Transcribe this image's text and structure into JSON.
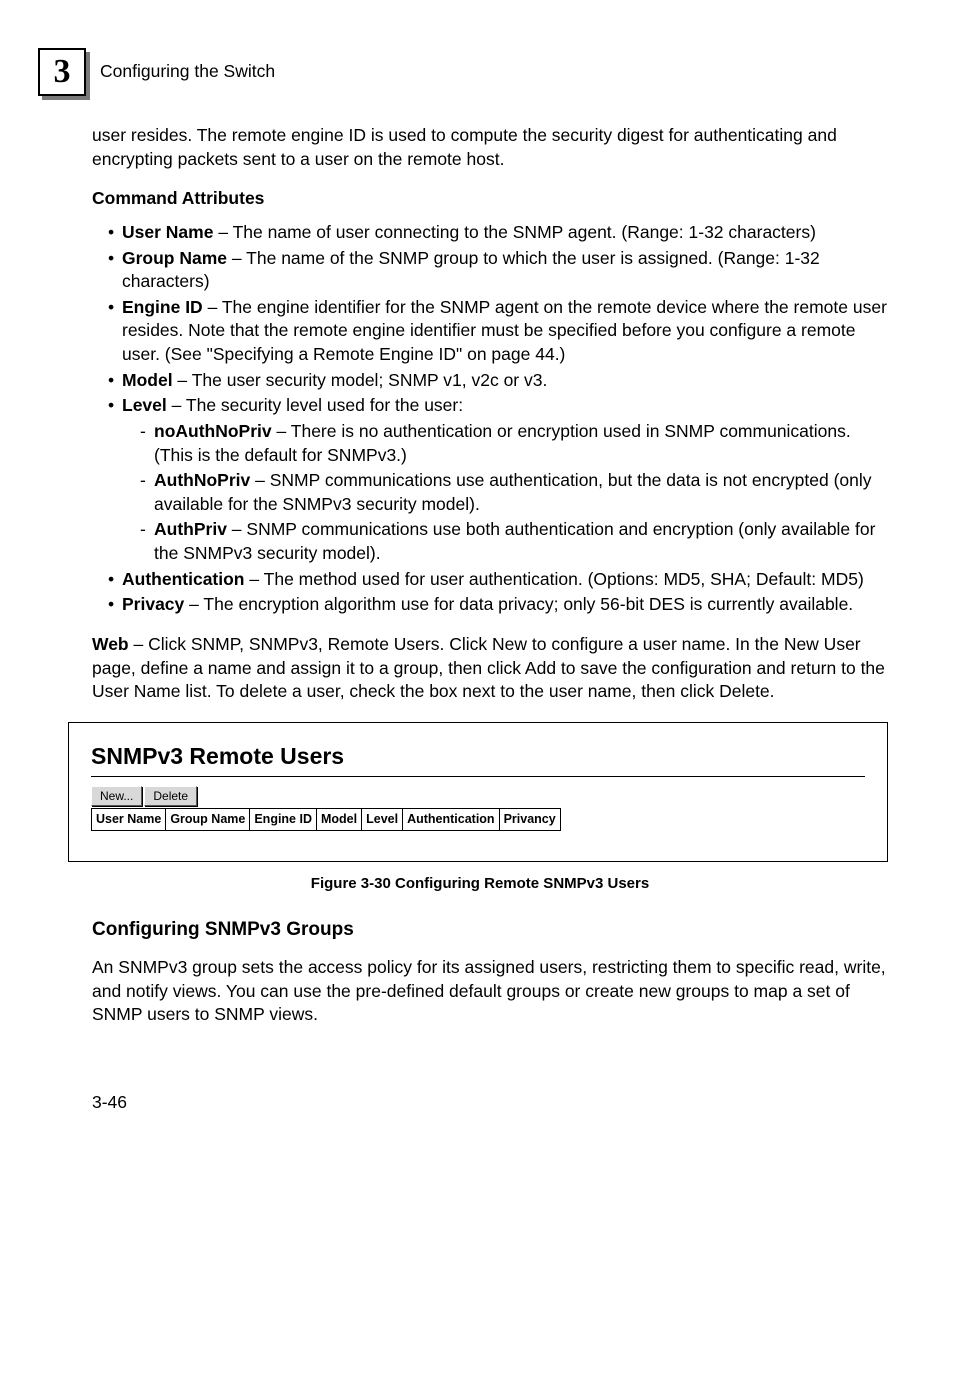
{
  "header": {
    "chapter_number": "3",
    "chapter_title": "Configuring the Switch"
  },
  "intro_para": "user resides. The remote engine ID is used to compute the security digest for authenticating and encrypting packets sent to a user on the remote host.",
  "command_attributes_heading": "Command Attributes",
  "attrs": {
    "user_name": {
      "label": "User Name",
      "desc": " – The name of user connecting to the SNMP agent. (Range: 1-32 characters)"
    },
    "group_name": {
      "label": "Group Name",
      "desc": " – The name of the SNMP group to which the user is assigned. (Range: 1-32 characters)"
    },
    "engine_id": {
      "label": "Engine ID",
      "desc": " – The engine identifier for the SNMP agent on the remote device where the remote user resides. Note that the remote engine identifier must be specified before you configure a remote user. (See \"Specifying a Remote Engine ID\" on page 44.)"
    },
    "model": {
      "label": "Model",
      "desc": " – The user security model; SNMP v1, v2c or v3."
    },
    "level": {
      "label": "Level",
      "desc": " – The security level used for the user:"
    },
    "level_items": {
      "noauthnopriv": {
        "label": "noAuthNoPriv",
        "desc": " – There is no authentication or encryption used in SNMP communications. (This is the default for SNMPv3.)"
      },
      "authnopriv": {
        "label": "AuthNoPriv",
        "desc": " – SNMP communications use authentication, but the data is not encrypted (only available for the SNMPv3 security model)."
      },
      "authpriv": {
        "label": "AuthPriv",
        "desc": " – SNMP communications use both authentication and encryption (only available for the SNMPv3 security model)."
      }
    },
    "authentication": {
      "label": "Authentication",
      "desc": " – The method used for user authentication. (Options: MD5, SHA; Default: MD5)"
    },
    "privacy": {
      "label": "Privacy",
      "desc": " – The encryption algorithm use for data privacy; only 56-bit DES is currently available."
    }
  },
  "web_para": {
    "label": "Web",
    "desc": " – Click SNMP, SNMPv3, Remote Users. Click New to configure a user name. In the New User page, define a name and assign it to a group, then click Add to save the configuration and return to the User Name list. To delete a user, check the box next to the user name, then click Delete."
  },
  "figure": {
    "panel_title": "SNMPv3 Remote Users",
    "new_btn": "New...",
    "delete_btn": "Delete",
    "columns": [
      "User Name",
      "Group Name",
      "Engine ID",
      "Model",
      "Level",
      "Authentication",
      "Privancy"
    ],
    "caption": "Figure 3-30  Configuring Remote SNMPv3 Users"
  },
  "groups": {
    "heading": "Configuring SNMPv3 Groups",
    "para": "An SNMPv3 group sets the access policy for its assigned users, restricting them to specific read, write, and notify views. You can use the pre-defined default groups or create new groups to map a set of SNMP users to SNMP views."
  },
  "page_number": "3-46"
}
